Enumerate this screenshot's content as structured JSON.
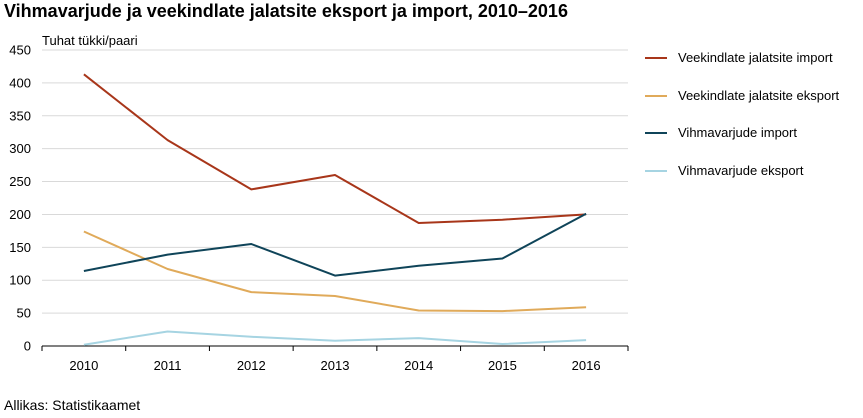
{
  "chart_data": {
    "type": "line",
    "title": "Vihmavarjude ja veekindlate jalatsite eksport ja import, 2010–2016",
    "ylabel": "Tuhat tükki/paari",
    "xlabel": "",
    "source": "Allikas: Statistikaamet",
    "x": [
      "2010",
      "2011",
      "2012",
      "2013",
      "2014",
      "2015",
      "2016"
    ],
    "ylim": [
      0,
      450
    ],
    "yticks": [
      0,
      50,
      100,
      150,
      200,
      250,
      300,
      350,
      400,
      450
    ],
    "grid": true,
    "legend_position": "right",
    "series": [
      {
        "name": "Veekindlate jalatsite import",
        "color": "#a8361a",
        "values": [
          413,
          313,
          238,
          260,
          187,
          192,
          200
        ]
      },
      {
        "name": "Veekindlate jalatsite eksport",
        "color": "#e0aa5a",
        "values": [
          174,
          117,
          82,
          76,
          54,
          53,
          59
        ]
      },
      {
        "name": "Vihmavarjude import",
        "color": "#0f4459",
        "values": [
          114,
          139,
          155,
          107,
          122,
          133,
          201
        ]
      },
      {
        "name": "Vihmavarjude eksport",
        "color": "#a6d4e2",
        "values": [
          2,
          22,
          14,
          8,
          12,
          3,
          9
        ]
      }
    ]
  }
}
